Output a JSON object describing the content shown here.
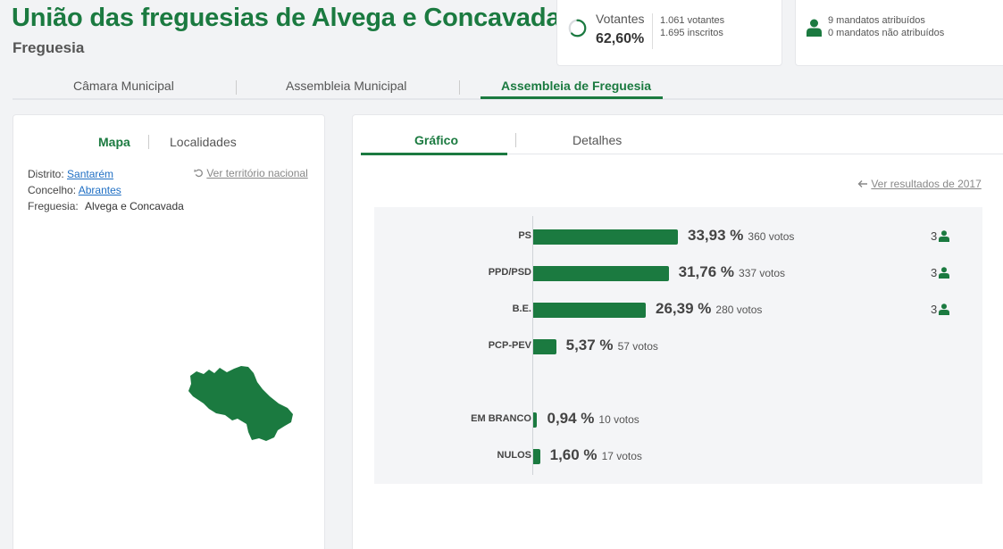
{
  "header": {
    "title": "União das freguesias de Alvega e Concavada",
    "subtitle": "Freguesia"
  },
  "stats": {
    "votantes_label": "Votantes",
    "votantes_pct": "62,60%",
    "votantes_fraction": 0.626,
    "votantes_count": "1.061 votantes",
    "inscritos_count": "1.695 inscritos",
    "mandatos_atribuidos": "9 mandatos atribuídos",
    "mandatos_nao_atribuidos": "0 mandatos não atribuídos"
  },
  "main_tabs": [
    {
      "label": "Câmara Municipal",
      "active": false
    },
    {
      "label": "Assembleia Municipal",
      "active": false
    },
    {
      "label": "Assembleia de Freguesia",
      "active": true
    }
  ],
  "left_panel": {
    "tabs": [
      {
        "label": "Mapa",
        "active": true
      },
      {
        "label": "Localidades",
        "active": false
      }
    ],
    "distrito_label": "Distrito:",
    "distrito_value": "Santarém",
    "concelho_label": "Concelho:",
    "concelho_value": "Abrantes",
    "freguesia_label": "Freguesia:",
    "freguesia_value": "Alvega e Concavada",
    "national_link": "Ver território nacional",
    "colors": {
      "map_fill": "#1b7a40"
    }
  },
  "right_panel": {
    "tabs": [
      {
        "label": "Gráfico",
        "active": true
      },
      {
        "label": "Detalhes",
        "active": false
      }
    ],
    "previous_results_link": "Ver resultados de 2017"
  },
  "chart_data": {
    "type": "bar",
    "orientation": "horizontal",
    "categories": [
      "PS",
      "PPD/PSD",
      "B.E.",
      "PCP-PEV",
      "EM BRANCO",
      "NULOS"
    ],
    "values": [
      33.93,
      31.76,
      26.39,
      5.37,
      0.94,
      1.6
    ],
    "labels": [
      "33,93 %",
      "31,76 %",
      "26,39 %",
      "5,37 %",
      "0,94 %",
      "1,60 %"
    ],
    "votes": [
      "360 votos",
      "337 votos",
      "280 votos",
      "57 votos",
      "10 votos",
      "17 votos"
    ],
    "mandates": [
      "3",
      "3",
      "3",
      "",
      "",
      ""
    ],
    "bar_color": "#1b7a40"
  }
}
